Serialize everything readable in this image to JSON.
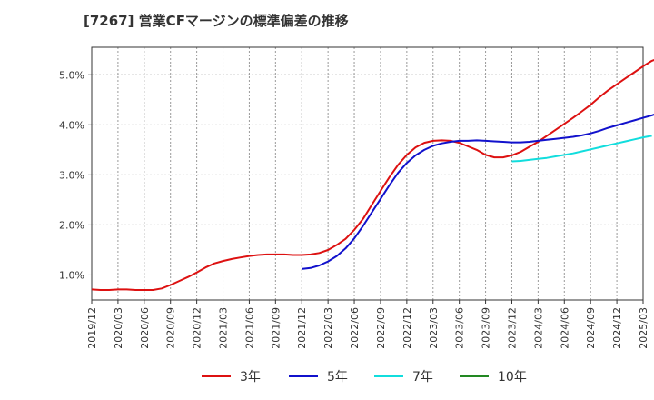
{
  "chart_data": {
    "type": "line",
    "title": "[7267]  営業CFマージンの標準偏差の推移",
    "xlabel": "",
    "ylabel": "",
    "ylim": [
      0.5,
      5.55
    ],
    "y_ticks": [
      1.0,
      2.0,
      3.0,
      4.0,
      5.0
    ],
    "y_tick_labels": [
      "1.0%",
      "2.0%",
      "3.0%",
      "4.0%",
      "5.0%"
    ],
    "x_tick_labels": [
      "2019/12",
      "2020/03",
      "2020/06",
      "2020/09",
      "2020/12",
      "2021/03",
      "2021/06",
      "2021/09",
      "2021/12",
      "2022/03",
      "2022/06",
      "2022/09",
      "2022/12",
      "2023/03",
      "2023/06",
      "2023/09",
      "2023/12",
      "2024/03",
      "2024/06",
      "2024/09",
      "2024/12",
      "2025/03"
    ],
    "x_range_months": [
      0,
      63
    ],
    "grid": true,
    "legend_position": "bottom",
    "series": [
      {
        "name": "3年",
        "color": "#dd1111",
        "points": [
          [
            0,
            0.71
          ],
          [
            1,
            0.7
          ],
          [
            2,
            0.7
          ],
          [
            3,
            0.71
          ],
          [
            4,
            0.71
          ],
          [
            5,
            0.7
          ],
          [
            6,
            0.7
          ],
          [
            7,
            0.7
          ],
          [
            8,
            0.73
          ],
          [
            9,
            0.8
          ],
          [
            10,
            0.88
          ],
          [
            11,
            0.96
          ],
          [
            12,
            1.05
          ],
          [
            13,
            1.15
          ],
          [
            14,
            1.23
          ],
          [
            15,
            1.28
          ],
          [
            16,
            1.32
          ],
          [
            17,
            1.35
          ],
          [
            18,
            1.38
          ],
          [
            19,
            1.4
          ],
          [
            20,
            1.41
          ],
          [
            21,
            1.41
          ],
          [
            22,
            1.41
          ],
          [
            23,
            1.4
          ],
          [
            24,
            1.4
          ],
          [
            25,
            1.41
          ],
          [
            26,
            1.44
          ],
          [
            27,
            1.5
          ],
          [
            28,
            1.6
          ],
          [
            29,
            1.72
          ],
          [
            30,
            1.9
          ],
          [
            31,
            2.12
          ],
          [
            32,
            2.4
          ],
          [
            33,
            2.68
          ],
          [
            34,
            2.95
          ],
          [
            35,
            3.2
          ],
          [
            36,
            3.4
          ],
          [
            37,
            3.55
          ],
          [
            38,
            3.64
          ],
          [
            39,
            3.68
          ],
          [
            40,
            3.69
          ],
          [
            41,
            3.68
          ],
          [
            42,
            3.64
          ],
          [
            43,
            3.57
          ],
          [
            44,
            3.5
          ],
          [
            45,
            3.4
          ],
          [
            46,
            3.35
          ],
          [
            47,
            3.35
          ],
          [
            48,
            3.39
          ],
          [
            49,
            3.46
          ],
          [
            50,
            3.56
          ],
          [
            51,
            3.66
          ],
          [
            52,
            3.78
          ],
          [
            53,
            3.9
          ],
          [
            54,
            4.02
          ],
          [
            55,
            4.14
          ],
          [
            56,
            4.27
          ],
          [
            57,
            4.4
          ],
          [
            58,
            4.55
          ],
          [
            59,
            4.69
          ],
          [
            60,
            4.81
          ],
          [
            61,
            4.93
          ],
          [
            62,
            5.05
          ],
          [
            63,
            5.17
          ],
          [
            64,
            5.28
          ],
          [
            65,
            5.34
          ]
        ]
      },
      {
        "name": "5年",
        "color": "#1111cc",
        "points": [
          [
            24,
            1.12
          ],
          [
            25,
            1.14
          ],
          [
            26,
            1.19
          ],
          [
            27,
            1.27
          ],
          [
            28,
            1.38
          ],
          [
            29,
            1.53
          ],
          [
            30,
            1.73
          ],
          [
            31,
            1.98
          ],
          [
            32,
            2.25
          ],
          [
            33,
            2.52
          ],
          [
            34,
            2.79
          ],
          [
            35,
            3.04
          ],
          [
            36,
            3.24
          ],
          [
            37,
            3.39
          ],
          [
            38,
            3.5
          ],
          [
            39,
            3.58
          ],
          [
            40,
            3.63
          ],
          [
            41,
            3.66
          ],
          [
            42,
            3.68
          ],
          [
            43,
            3.68
          ],
          [
            44,
            3.69
          ],
          [
            45,
            3.68
          ],
          [
            46,
            3.67
          ],
          [
            47,
            3.66
          ],
          [
            48,
            3.65
          ],
          [
            49,
            3.65
          ],
          [
            50,
            3.66
          ],
          [
            51,
            3.68
          ],
          [
            52,
            3.7
          ],
          [
            53,
            3.72
          ],
          [
            54,
            3.74
          ],
          [
            55,
            3.76
          ],
          [
            56,
            3.79
          ],
          [
            57,
            3.83
          ],
          [
            58,
            3.88
          ],
          [
            59,
            3.94
          ],
          [
            60,
            3.99
          ],
          [
            61,
            4.04
          ],
          [
            62,
            4.09
          ],
          [
            63,
            4.14
          ],
          [
            64,
            4.19
          ],
          [
            65,
            4.25
          ]
        ]
      },
      {
        "name": "7年",
        "color": "#11dddd",
        "points": [
          [
            48,
            3.27
          ],
          [
            49,
            3.28
          ],
          [
            50,
            3.3
          ],
          [
            51,
            3.32
          ],
          [
            52,
            3.34
          ],
          [
            53,
            3.37
          ],
          [
            54,
            3.4
          ],
          [
            55,
            3.43
          ],
          [
            56,
            3.47
          ],
          [
            57,
            3.51
          ],
          [
            58,
            3.55
          ],
          [
            59,
            3.59
          ],
          [
            60,
            3.63
          ],
          [
            61,
            3.67
          ],
          [
            62,
            3.71
          ],
          [
            63,
            3.75
          ],
          [
            64,
            3.78
          ]
        ]
      },
      {
        "name": "10年",
        "color": "#228822",
        "points": []
      }
    ]
  }
}
